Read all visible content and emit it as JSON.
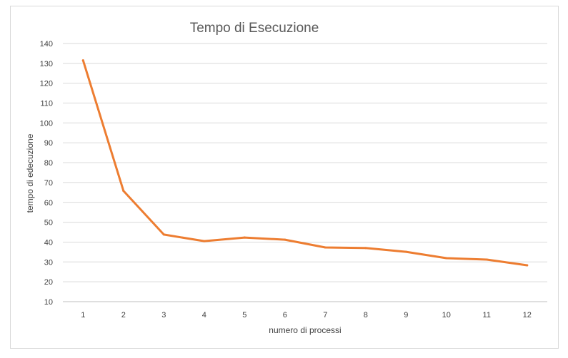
{
  "chart_data": {
    "type": "line",
    "title": "Tempo di Esecuzione",
    "xlabel": "numero di processi",
    "ylabel": "tempo di edecuzione",
    "categories": [
      "1",
      "2",
      "3",
      "4",
      "5",
      "6",
      "7",
      "8",
      "9",
      "10",
      "11",
      "12"
    ],
    "series": [
      {
        "values": [
          131.5,
          65.8,
          43.8,
          40.5,
          42.3,
          41.2,
          37.3,
          37.0,
          35.1,
          31.9,
          31.2,
          28.3
        ]
      }
    ],
    "ylim": [
      10,
      140
    ],
    "yticks": [
      10,
      20,
      30,
      40,
      50,
      60,
      70,
      80,
      90,
      100,
      110,
      120,
      130,
      140
    ],
    "grid": true,
    "legend": "none",
    "colors": {
      "line": "#ED7D31",
      "grid": "#d9d9d9",
      "axis": "#bfbfbf"
    }
  }
}
